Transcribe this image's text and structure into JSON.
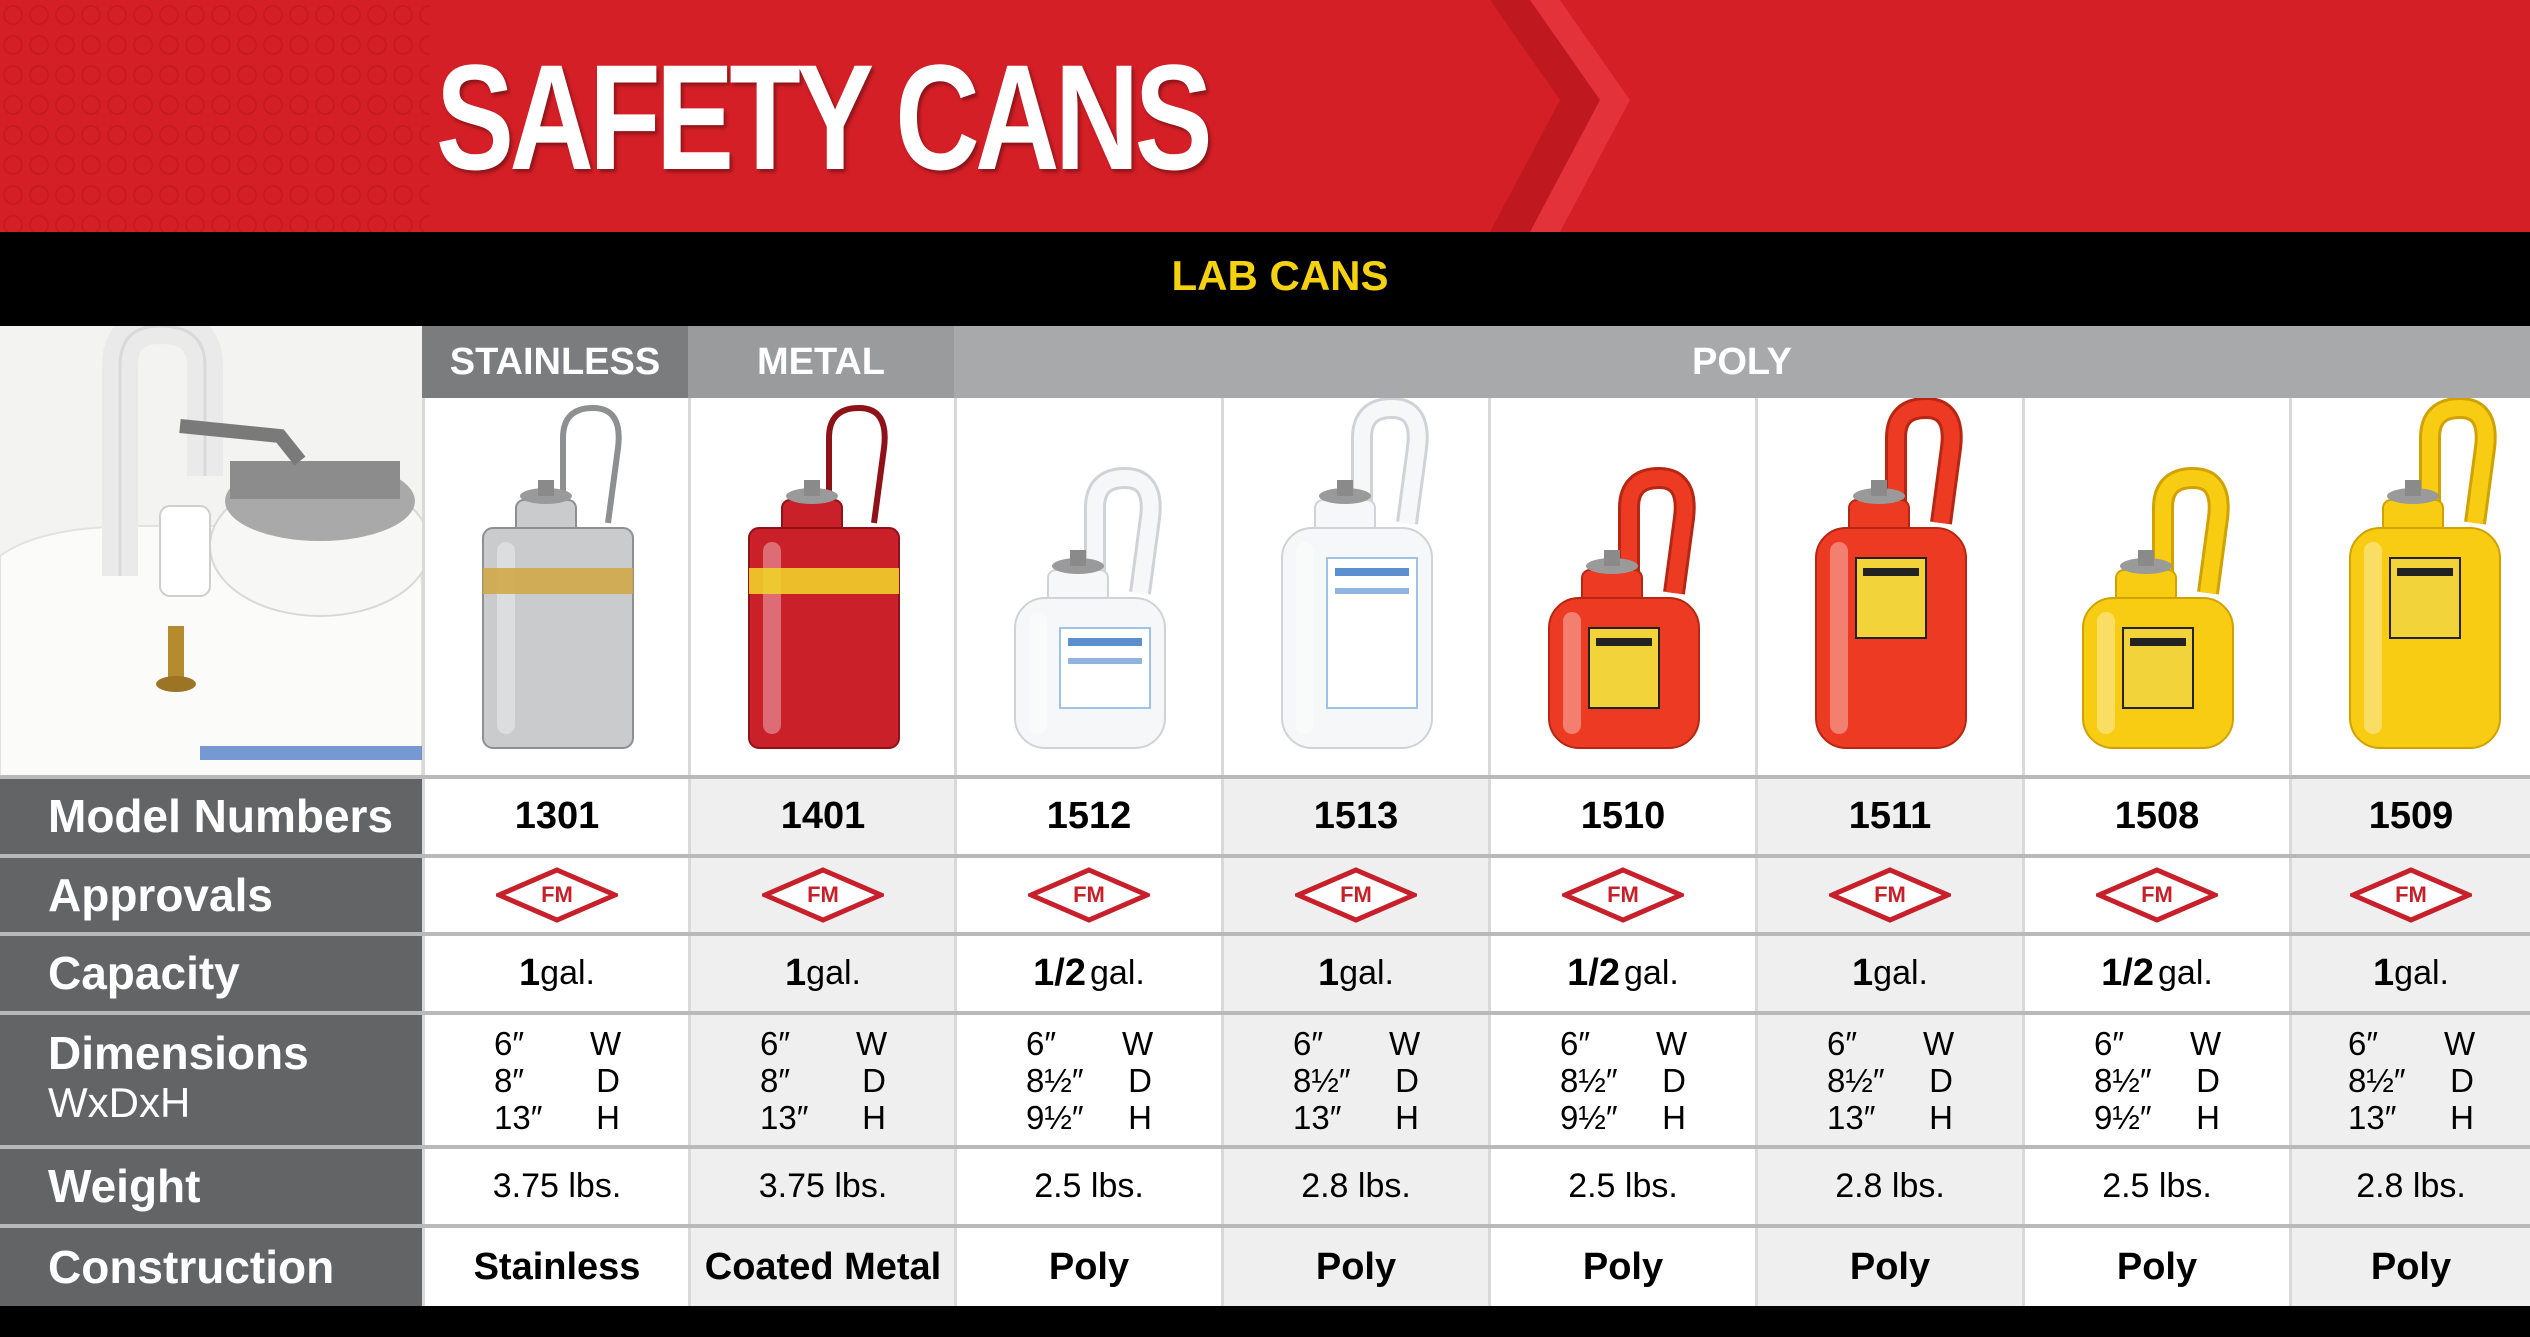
{
  "header": {
    "title": "SAFETY CANS",
    "section": "LAB CANS"
  },
  "groups": [
    {
      "label": "STAINLESS",
      "color": "#7b7c7e"
    },
    {
      "label": "METAL",
      "color": "#9a9b9d"
    },
    {
      "label": "POLY",
      "color": "#a7a9ab"
    }
  ],
  "row_labels": {
    "model": "Model Numbers",
    "approvals": "Approvals",
    "capacity": "Capacity",
    "dimensions": "Dimensions",
    "dimensions_sub": "WxDxH",
    "weight": "Weight",
    "construction": "Construction"
  },
  "approval_mark": "FM",
  "dim_letters": [
    "W",
    "D",
    "H"
  ],
  "products": [
    {
      "model": "1301",
      "capacity": "1",
      "unit": "gal.",
      "dims": [
        "6″",
        "8″",
        "13″"
      ],
      "weight": "3.75 lbs.",
      "construction": "Stainless",
      "can_color": "stainless"
    },
    {
      "model": "1401",
      "capacity": "1",
      "unit": "gal.",
      "dims": [
        "6″",
        "8″",
        "13″"
      ],
      "weight": "3.75 lbs.",
      "construction": "Coated Metal",
      "can_color": "red-metal"
    },
    {
      "model": "1512",
      "capacity": "1/2",
      "unit": "gal.",
      "dims": [
        "6″",
        "8½″",
        "9½″"
      ],
      "weight": "2.5 lbs.",
      "construction": "Poly",
      "can_color": "white"
    },
    {
      "model": "1513",
      "capacity": "1",
      "unit": "gal.",
      "dims": [
        "6″",
        "8½″",
        "13″"
      ],
      "weight": "2.8 lbs.",
      "construction": "Poly",
      "can_color": "white"
    },
    {
      "model": "1510",
      "capacity": "1/2",
      "unit": "gal.",
      "dims": [
        "6″",
        "8½″",
        "9½″"
      ],
      "weight": "2.5 lbs.",
      "construction": "Poly",
      "can_color": "red"
    },
    {
      "model": "1511",
      "capacity": "1",
      "unit": "gal.",
      "dims": [
        "6″",
        "8½″",
        "13″"
      ],
      "weight": "2.8 lbs.",
      "construction": "Poly",
      "can_color": "red"
    },
    {
      "model": "1508",
      "capacity": "1/2",
      "unit": "gal.",
      "dims": [
        "6″",
        "8½″",
        "9½″"
      ],
      "weight": "2.5 lbs.",
      "construction": "Poly",
      "can_color": "yellow"
    },
    {
      "model": "1509",
      "capacity": "1",
      "unit": "gal.",
      "dims": [
        "6″",
        "8½″",
        "13″"
      ],
      "weight": "2.8 lbs.",
      "construction": "Poly",
      "can_color": "yellow"
    }
  ],
  "colors": {
    "brand_red": "#d41f26",
    "label_yellow": "#f5d20f",
    "row_label_bg": "#636466",
    "shade_cell": "#efefef",
    "fm_red": "#c8202a"
  }
}
